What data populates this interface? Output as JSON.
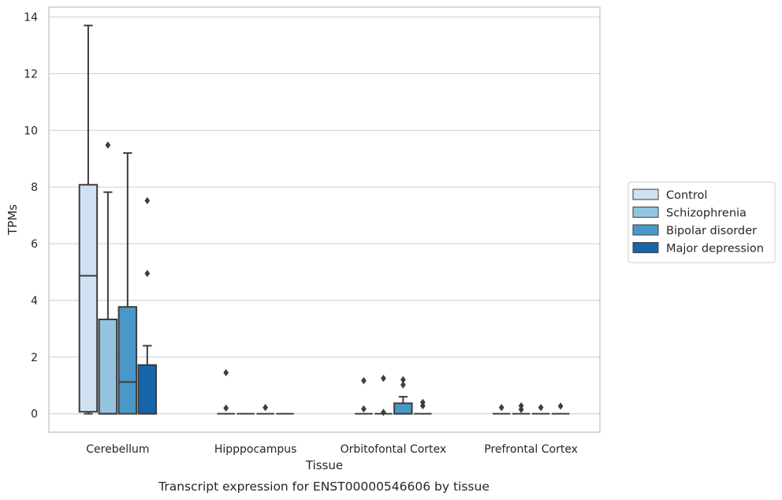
{
  "chart_data": {
    "type": "box",
    "title": "Transcript expression for ENST00000546606 by tissue",
    "xlabel": "Tissue",
    "ylabel": "TPMs",
    "ylim": [
      -0.65,
      14.35
    ],
    "yticks": [
      0,
      2,
      4,
      6,
      8,
      10,
      12,
      14
    ],
    "grid": true,
    "legend_position": "right",
    "categories": [
      "Cerebellum",
      "Hipppocampus",
      "Orbitofontal Cortex",
      "Prefrontal Cortex"
    ],
    "series": [
      {
        "name": "Control",
        "color": "#d0e1f2",
        "boxes": [
          {
            "whislo": 0.0,
            "q1": 0.07,
            "med": 4.87,
            "q3": 8.08,
            "whishi": 13.7,
            "fliers": []
          },
          {
            "whislo": 0.0,
            "q1": 0.0,
            "med": 0.0,
            "q3": 0.0,
            "whishi": 0.0,
            "fliers": [
              1.45,
              0.2
            ]
          },
          {
            "whislo": 0.0,
            "q1": 0.0,
            "med": 0.0,
            "q3": 0.0,
            "whishi": 0.0,
            "fliers": [
              1.17,
              0.17
            ]
          },
          {
            "whislo": 0.0,
            "q1": 0.0,
            "med": 0.0,
            "q3": 0.0,
            "whishi": 0.0,
            "fliers": [
              0.22
            ]
          }
        ]
      },
      {
        "name": "Schizophrenia",
        "color": "#94c4df",
        "boxes": [
          {
            "whislo": 0.0,
            "q1": 0.0,
            "med": 0.0,
            "q3": 3.33,
            "whishi": 7.82,
            "fliers": [
              9.48
            ]
          },
          {
            "whislo": 0.0,
            "q1": 0.0,
            "med": 0.0,
            "q3": 0.0,
            "whishi": 0.0,
            "fliers": []
          },
          {
            "whislo": 0.0,
            "q1": 0.0,
            "med": 0.0,
            "q3": 0.0,
            "whishi": 0.0,
            "fliers": [
              1.25,
              0.05
            ]
          },
          {
            "whislo": 0.0,
            "q1": 0.0,
            "med": 0.0,
            "q3": 0.0,
            "whishi": 0.0,
            "fliers": [
              0.28,
              0.15
            ]
          }
        ]
      },
      {
        "name": "Bipolar disorder",
        "color": "#4a98c9",
        "boxes": [
          {
            "whislo": 0.0,
            "q1": 0.0,
            "med": 1.12,
            "q3": 3.77,
            "whishi": 9.2,
            "fliers": []
          },
          {
            "whislo": 0.0,
            "q1": 0.0,
            "med": 0.0,
            "q3": 0.0,
            "whishi": 0.0,
            "fliers": [
              0.22
            ]
          },
          {
            "whislo": 0.0,
            "q1": 0.0,
            "med": 0.0,
            "q3": 0.37,
            "whishi": 0.6,
            "fliers": [
              1.2,
              1.02
            ]
          },
          {
            "whislo": 0.0,
            "q1": 0.0,
            "med": 0.0,
            "q3": 0.0,
            "whishi": 0.0,
            "fliers": [
              0.22
            ]
          }
        ]
      },
      {
        "name": "Major depression",
        "color": "#1764ab",
        "boxes": [
          {
            "whislo": 0.0,
            "q1": 0.0,
            "med": 0.0,
            "q3": 1.72,
            "whishi": 2.4,
            "fliers": [
              7.52,
              4.95
            ]
          },
          {
            "whislo": 0.0,
            "q1": 0.0,
            "med": 0.0,
            "q3": 0.0,
            "whishi": 0.0,
            "fliers": []
          },
          {
            "whislo": 0.0,
            "q1": 0.0,
            "med": 0.0,
            "q3": 0.0,
            "whishi": 0.0,
            "fliers": [
              0.4,
              0.28
            ]
          },
          {
            "whislo": 0.0,
            "q1": 0.0,
            "med": 0.0,
            "q3": 0.0,
            "whishi": 0.0,
            "fliers": [
              0.27
            ]
          }
        ]
      }
    ]
  }
}
